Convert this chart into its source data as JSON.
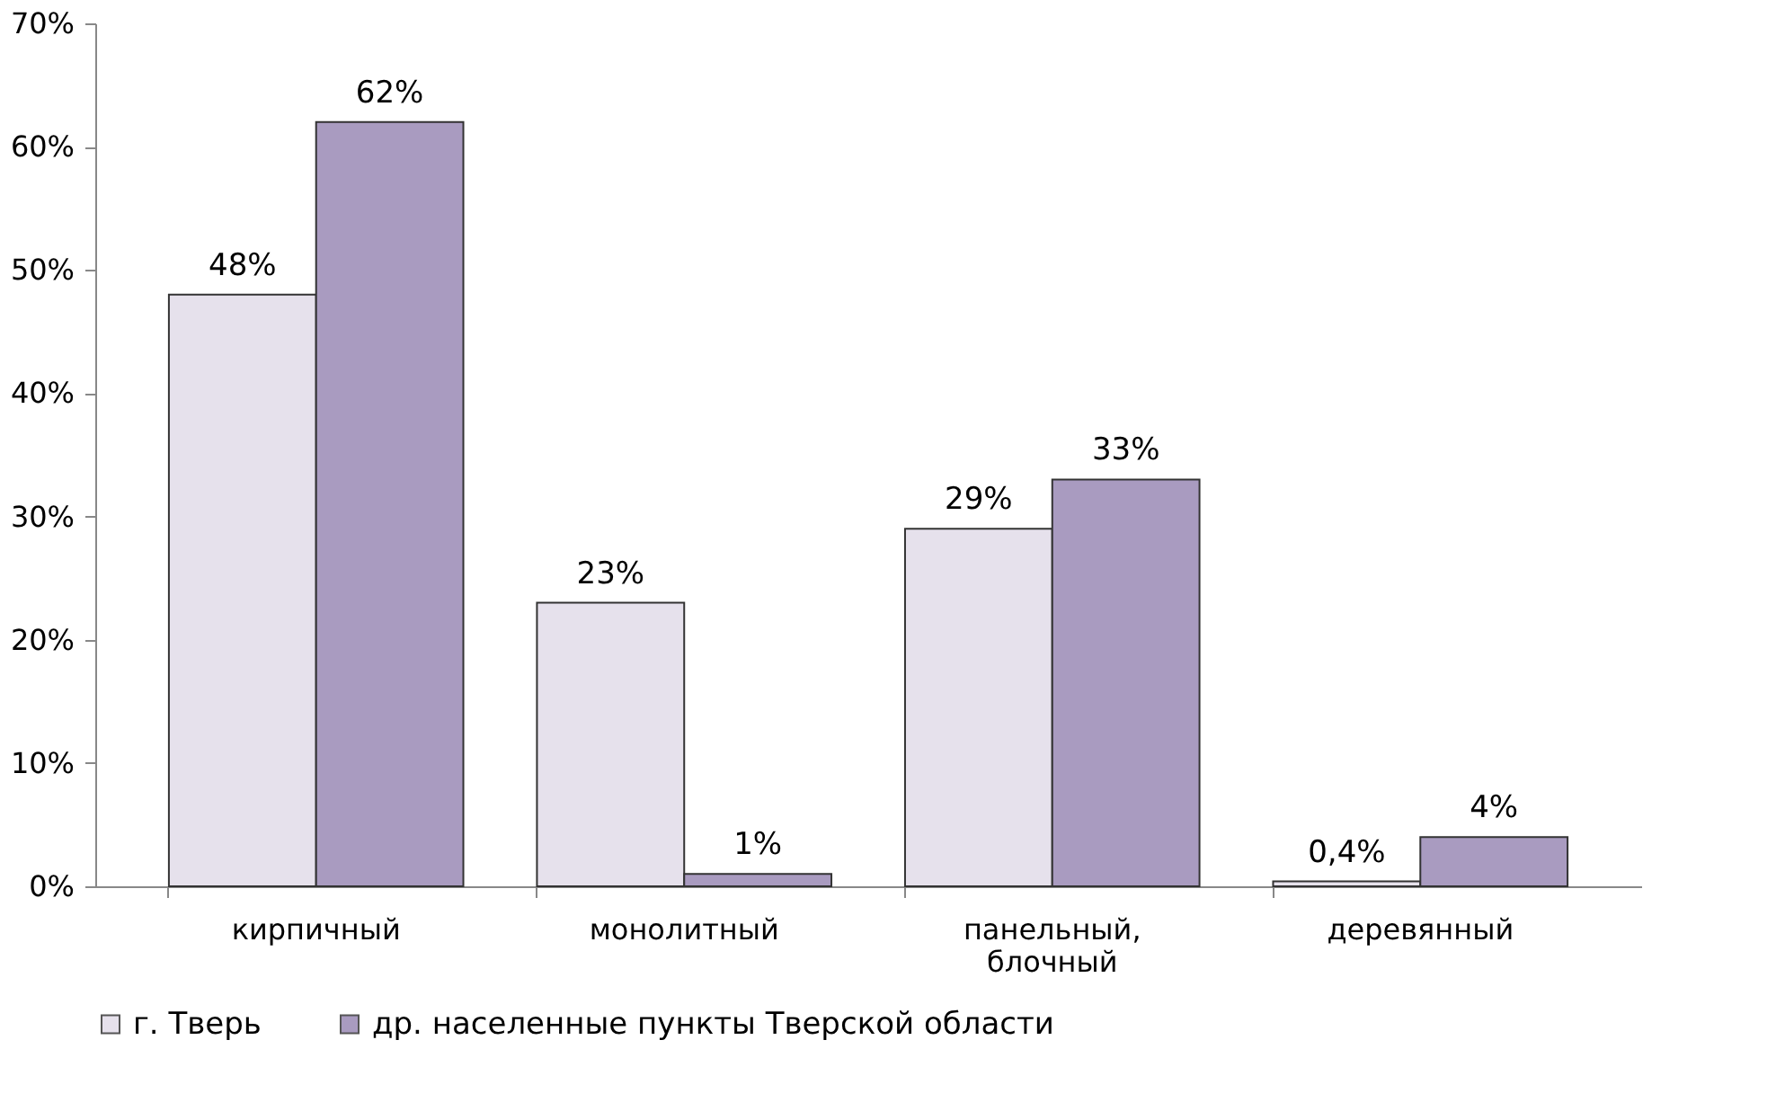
{
  "chart_data": {
    "type": "bar",
    "categories": [
      "кирпичный",
      "монолитный",
      "панельный, блочный",
      "деревянный"
    ],
    "series": [
      {
        "name": "г. Тверь",
        "color": "#e6e1ec",
        "values": [
          48,
          23,
          29,
          0.4
        ],
        "value_labels": [
          "48%",
          "23%",
          "29%",
          "0,4%"
        ]
      },
      {
        "name": "др. населенные пункты Тверской области",
        "color": "#a99bc0",
        "values": [
          62,
          1,
          33,
          4
        ],
        "value_labels": [
          "62%",
          "1%",
          "33%",
          "4%"
        ]
      }
    ],
    "ylim": [
      0,
      70
    ],
    "yticks": [
      {
        "value": 0,
        "label": "0%"
      },
      {
        "value": 10,
        "label": "10%"
      },
      {
        "value": 20,
        "label": "20%"
      },
      {
        "value": 30,
        "label": "30%"
      },
      {
        "value": 40,
        "label": "40%"
      },
      {
        "value": 50,
        "label": "50%"
      },
      {
        "value": 60,
        "label": "60%"
      },
      {
        "value": 70,
        "label": "70%"
      }
    ],
    "grid": false,
    "legend": "bottom"
  }
}
